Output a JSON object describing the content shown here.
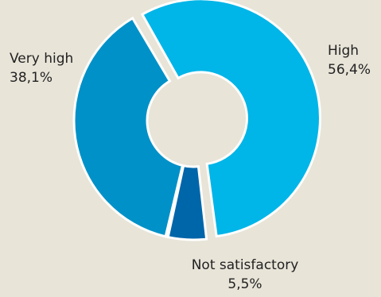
{
  "chart_data": {
    "type": "pie",
    "variant": "donut",
    "title": "",
    "legend": "none",
    "slices": [
      {
        "label": "High",
        "value": 56.4,
        "value_label": "56,4%",
        "color": "#00b5e8"
      },
      {
        "label": "Not satisfactory",
        "value": 5.5,
        "value_label": "5,5%",
        "color": "#0066aa"
      },
      {
        "label": "Very high",
        "value": 38.1,
        "value_label": "38,1%",
        "color": "#0091c8"
      }
    ]
  }
}
